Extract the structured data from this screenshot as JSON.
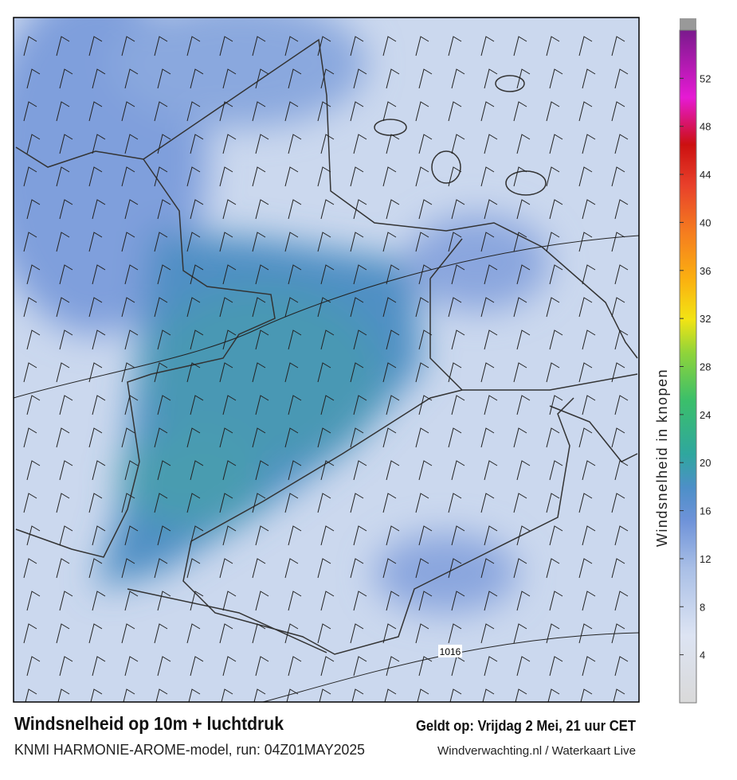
{
  "title": "Windsnelheid op 10m + luchtdruk",
  "subtitle": "KNMI HARMONIE-AROME-model, run: 04Z01MAY2025",
  "valid_time": "Geldt op: Vrijdag 2 Mei, 21 uur CET",
  "source": "Windverwachting.nl / Waterkaart Live",
  "isobar_label": "1016",
  "colorbar": {
    "label": "Windsnelheid in knopen",
    "range": [
      0,
      56
    ],
    "ticks": [
      4,
      8,
      12,
      16,
      20,
      24,
      28,
      32,
      36,
      40,
      44,
      48,
      52
    ]
  }
}
